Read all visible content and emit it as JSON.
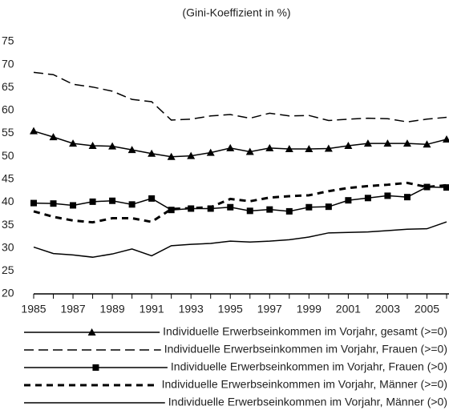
{
  "chart_data": {
    "type": "line",
    "title": "(Gini-Koeffizient in %)",
    "x": [
      1985,
      1986,
      1987,
      1988,
      1989,
      1990,
      1991,
      1992,
      1993,
      1994,
      1995,
      1996,
      1997,
      1998,
      1999,
      2000,
      2001,
      2002,
      2003,
      2004,
      2005,
      2006
    ],
    "xlim": [
      1985,
      2006
    ],
    "xticks": [
      1985,
      1987,
      1989,
      1991,
      1993,
      1995,
      1997,
      1999,
      2001,
      2003,
      2005
    ],
    "ylim": [
      20,
      75
    ],
    "yticks": [
      20,
      25,
      30,
      35,
      40,
      45,
      50,
      55,
      60,
      65,
      70,
      75
    ],
    "grid": false,
    "series": [
      {
        "name": "Individuelle Erwerbseinkommen im Vorjahr, gesamt (>=0)",
        "color": "#000000",
        "dash": "solid",
        "marker": "triangle",
        "values": [
          55.5,
          54.2,
          52.8,
          52.3,
          52.2,
          51.4,
          50.6,
          49.9,
          50.1,
          50.8,
          51.8,
          51.0,
          51.8,
          51.6,
          51.6,
          51.7,
          52.3,
          52.8,
          52.8,
          52.8,
          52.6,
          53.7
        ]
      },
      {
        "name": "Individuelle Erwerbseinkommen im Vorjahr, Frauen (>=0)",
        "color": "#000000",
        "dash": "long",
        "marker": "none",
        "values": [
          68.3,
          67.8,
          65.7,
          65.1,
          64.2,
          62.4,
          61.9,
          57.9,
          58.1,
          58.8,
          59.1,
          58.3,
          59.4,
          58.8,
          58.9,
          57.8,
          58.1,
          58.3,
          58.2,
          57.5,
          58.1,
          58.5
        ]
      },
      {
        "name": "Individuelle Erwerbseinkommen im Vorjahr, Frauen (>0)",
        "color": "#000000",
        "dash": "solid",
        "marker": "square",
        "values": [
          39.8,
          39.7,
          39.3,
          40.1,
          40.3,
          39.5,
          40.8,
          38.3,
          38.6,
          38.6,
          38.9,
          38.1,
          38.4,
          38.0,
          38.9,
          39.0,
          40.4,
          40.9,
          41.4,
          41.1,
          43.3,
          43.2
        ]
      },
      {
        "name": "Individuelle Erwerbseinkommen im Vorjahr, Männer (>=0)",
        "color": "#000000",
        "dash": "short",
        "marker": "none",
        "values": [
          38.0,
          36.8,
          36.0,
          35.6,
          36.5,
          36.5,
          35.7,
          38.5,
          38.7,
          38.9,
          40.7,
          40.2,
          41.0,
          41.3,
          41.5,
          42.4,
          43.1,
          43.5,
          43.8,
          44.2,
          43.3,
          43.7
        ]
      },
      {
        "name": "Individuelle Erwerbseinkommen im Vorjahr, Männer (>0)",
        "color": "#000000",
        "dash": "solid",
        "marker": "none",
        "values": [
          30.2,
          28.8,
          28.5,
          28.0,
          28.7,
          29.8,
          28.3,
          30.5,
          30.8,
          31.0,
          31.5,
          31.3,
          31.5,
          31.8,
          32.4,
          33.3,
          33.4,
          33.5,
          33.8,
          34.1,
          34.2,
          35.7
        ]
      }
    ]
  }
}
